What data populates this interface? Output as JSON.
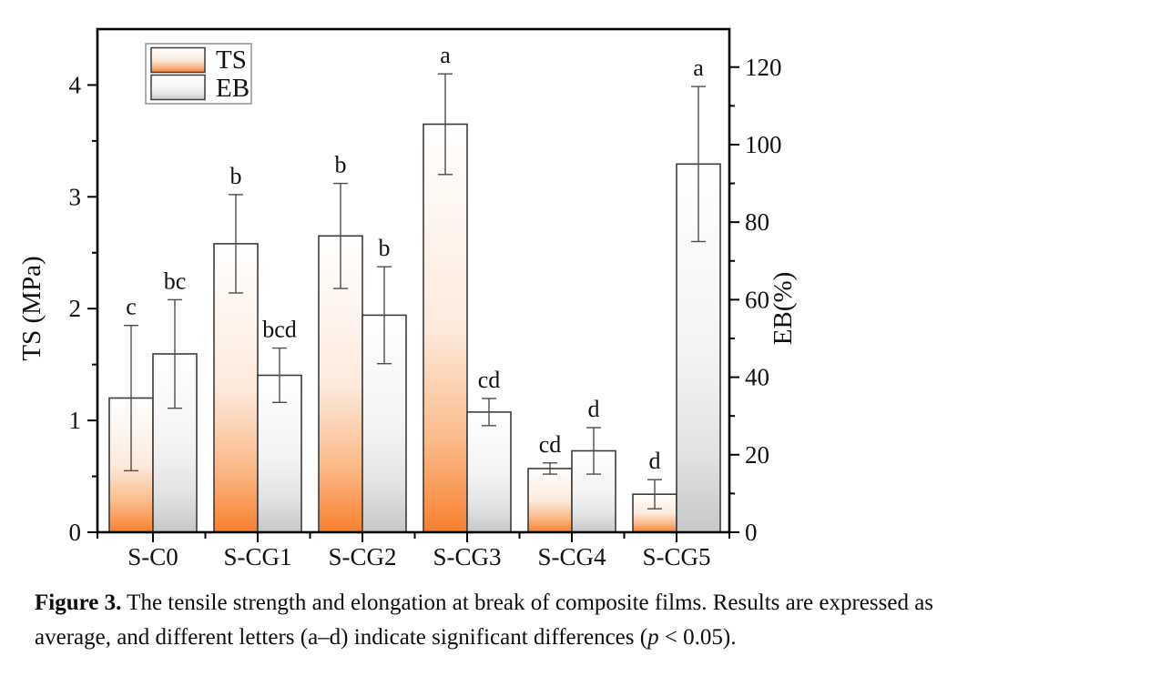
{
  "caption": {
    "label": "Figure 3.",
    "line1": " The tensile strength and elongation at break of composite films. Results are expressed as",
    "line2_before_p": "average, and different letters (a–d) indicate significant differences (",
    "p_symbol": "p",
    "line2_after_p": " < 0.05)."
  },
  "chart_data": {
    "type": "bar",
    "title": "",
    "categories": [
      "S-C0",
      "S-CG1",
      "S-CG2",
      "S-CG3",
      "S-CG4",
      "S-CG5"
    ],
    "series": [
      {
        "name": "TS",
        "axis": "left",
        "values": [
          1.2,
          2.58,
          2.65,
          3.65,
          0.57,
          0.34
        ],
        "errors": [
          0.65,
          0.44,
          0.47,
          0.45,
          0.05,
          0.13
        ],
        "sig_letters": [
          "c",
          "b",
          "b",
          "a",
          "cd",
          "d"
        ],
        "gradient": [
          "#ffffff",
          "#fdeadd",
          "#fbb988",
          "#f8802f"
        ]
      },
      {
        "name": "EB",
        "axis": "right",
        "values": [
          46,
          40.5,
          56,
          31,
          21,
          95
        ],
        "errors": [
          14,
          7,
          12.5,
          3.5,
          6,
          20
        ],
        "sig_letters": [
          "bc",
          "bcd",
          "b",
          "cd",
          "d",
          "a"
        ],
        "gradient": [
          "#ffffff",
          "#f4f4f5",
          "#e2e3e4",
          "#c6c7c9"
        ]
      }
    ],
    "left_axis": {
      "label": "TS (MPa)",
      "min": 0,
      "max": 4.5,
      "major_ticks": [
        0,
        1,
        2,
        3,
        4
      ],
      "minor_step": 0.5
    },
    "right_axis": {
      "label": "EB(%)",
      "min": 0,
      "max": 129.8,
      "major_ticks": [
        0,
        20,
        40,
        60,
        80,
        100,
        120
      ],
      "minor_step": 10
    },
    "legend": {
      "entries": [
        "TS",
        "EB"
      ],
      "position": "upper-left"
    },
    "grid": false,
    "frame": true,
    "colors": {
      "frame": "#000000",
      "bar_stroke": "#3c3c3c",
      "error_bar": "#4d4d4d",
      "legend_border": "#999999"
    }
  }
}
